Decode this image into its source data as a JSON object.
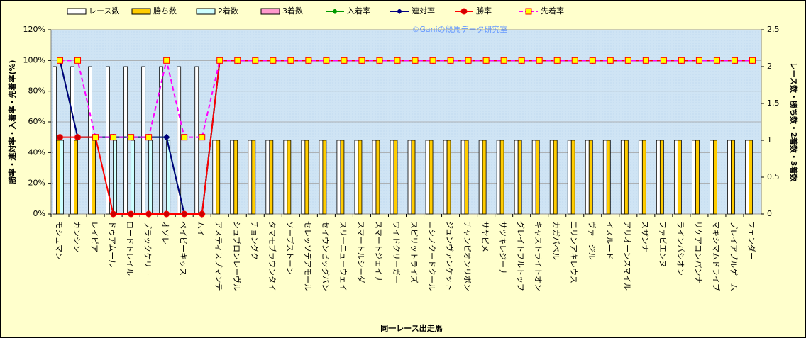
{
  "chart_data": {
    "type": "combo",
    "annotation": "©Ganiの競馬データ研究室",
    "x_label": "同一レース出走馬",
    "y_label": "勝率・連対率・入着率・先着率(%)",
    "y2_label": "レース数・勝ち数・2着数・3着数",
    "categories": [
      "モシュマン",
      "カンシン",
      "レイピア",
      "ドゥアムール",
      "ロードトレイル",
      "ブラックケリー",
      "オソレ",
      "ベイビーキッス",
      "ムイ",
      "アスティスプマンテ",
      "シュプロンレーヴル",
      "チョングク",
      "タマモブラウンタイ",
      "ソーブストーン",
      "セレッソデアモール",
      "セイウンビッグバン",
      "スリーニューウェイ",
      "スマートルシーダ",
      "スマートジェイナ",
      "ワイドクリーガー",
      "スピリットライズ",
      "ニシノクードクール",
      "ジュンヴァンケット",
      "チャンピオンリボン",
      "サヤビメ",
      "サツキレジーナ",
      "グレイトフルトップ",
      "キャストライトオン",
      "カガバベル",
      "エリンアキレウス",
      "ヴァージル",
      "イスルード",
      "アリオーンスマイル",
      "スザンナ",
      "ファビエンヌ",
      "ラインパシオン",
      "リケアコンパンナ",
      "マキシマムドライブ",
      "プレイアブルゲーム",
      "フェンダー"
    ],
    "ylim": [
      0,
      120
    ],
    "yticks": [
      {
        "value": 0,
        "label": "0%"
      },
      {
        "value": 20,
        "label": "20%"
      },
      {
        "value": 40,
        "label": "40%"
      },
      {
        "value": 60,
        "label": "60%"
      },
      {
        "value": 80,
        "label": "80%"
      },
      {
        "value": 100,
        "label": "100%"
      },
      {
        "value": 120,
        "label": "120%"
      }
    ],
    "y2lim": [
      0,
      2.5
    ],
    "y2ticks": [
      0,
      0.5,
      1,
      1.5,
      2,
      2.5
    ],
    "grid": true,
    "series": [
      {
        "name": "レース数",
        "type": "bar",
        "axis": "y2",
        "color": "#ffffff",
        "values": [
          2,
          2,
          2,
          2,
          2,
          2,
          2,
          2,
          2,
          1,
          1,
          1,
          1,
          1,
          1,
          1,
          1,
          1,
          1,
          1,
          1,
          1,
          1,
          1,
          1,
          1,
          1,
          1,
          1,
          1,
          1,
          1,
          1,
          1,
          1,
          1,
          1,
          1,
          1,
          1
        ]
      },
      {
        "name": "勝ち数",
        "type": "bar",
        "axis": "y2",
        "color": "#ffcc00",
        "values": [
          1,
          1,
          1,
          0,
          0,
          0,
          0,
          0,
          0,
          1,
          1,
          1,
          1,
          1,
          1,
          1,
          1,
          1,
          1,
          1,
          1,
          1,
          1,
          1,
          1,
          1,
          1,
          1,
          1,
          1,
          1,
          1,
          1,
          1,
          1,
          1,
          1,
          1,
          1,
          1
        ]
      },
      {
        "name": "2着数",
        "type": "bar",
        "axis": "y2",
        "color": "#ccffff",
        "values": [
          1,
          0,
          0,
          1,
          1,
          1,
          1,
          0,
          0,
          0,
          0,
          0,
          0,
          0,
          0,
          0,
          0,
          0,
          0,
          0,
          0,
          0,
          0,
          0,
          0,
          0,
          0,
          0,
          0,
          0,
          0,
          0,
          0,
          0,
          0,
          0,
          0,
          0,
          0,
          0
        ]
      },
      {
        "name": "3着数",
        "type": "bar",
        "axis": "y2",
        "color": "#ff99cc",
        "values": [
          0,
          0,
          0,
          0,
          0,
          0,
          0,
          0,
          0,
          0,
          0,
          0,
          0,
          0,
          0,
          0,
          0,
          0,
          0,
          0,
          0,
          0,
          0,
          0,
          0,
          0,
          0,
          0,
          0,
          0,
          0,
          0,
          0,
          0,
          0,
          0,
          0,
          0,
          0,
          0
        ]
      },
      {
        "name": "入着率",
        "type": "line",
        "color": "#009900",
        "marker": "diamond",
        "markerFill": "#009900",
        "values": [
          100,
          50,
          50,
          50,
          50,
          50,
          50,
          0,
          0,
          100,
          100,
          100,
          100,
          100,
          100,
          100,
          100,
          100,
          100,
          100,
          100,
          100,
          100,
          100,
          100,
          100,
          100,
          100,
          100,
          100,
          100,
          100,
          100,
          100,
          100,
          100,
          100,
          100,
          100,
          100
        ]
      },
      {
        "name": "連対率",
        "type": "line",
        "color": "#000080",
        "marker": "diamond",
        "markerFill": "#000080",
        "values": [
          100,
          50,
          50,
          50,
          50,
          50,
          50,
          0,
          0,
          100,
          100,
          100,
          100,
          100,
          100,
          100,
          100,
          100,
          100,
          100,
          100,
          100,
          100,
          100,
          100,
          100,
          100,
          100,
          100,
          100,
          100,
          100,
          100,
          100,
          100,
          100,
          100,
          100,
          100,
          100
        ]
      },
      {
        "name": "勝率",
        "type": "line",
        "color": "#ff0000",
        "marker": "circle",
        "markerFill": "#cc0000",
        "values": [
          50,
          50,
          50,
          0,
          0,
          0,
          0,
          0,
          0,
          100,
          100,
          100,
          100,
          100,
          100,
          100,
          100,
          100,
          100,
          100,
          100,
          100,
          100,
          100,
          100,
          100,
          100,
          100,
          100,
          100,
          100,
          100,
          100,
          100,
          100,
          100,
          100,
          100,
          100,
          100
        ]
      },
      {
        "name": "先着率",
        "type": "line",
        "color": "#ff00ff",
        "dash": true,
        "marker": "square",
        "markerFill": "#ffff00",
        "markerStroke": "#ff0000",
        "values": [
          100,
          100,
          50,
          50,
          50,
          50,
          100,
          50,
          50,
          100,
          100,
          100,
          100,
          100,
          100,
          100,
          100,
          100,
          100,
          100,
          100,
          100,
          100,
          100,
          100,
          100,
          100,
          100,
          100,
          100,
          100,
          100,
          100,
          100,
          100,
          100,
          100,
          100,
          100,
          100
        ]
      }
    ]
  }
}
